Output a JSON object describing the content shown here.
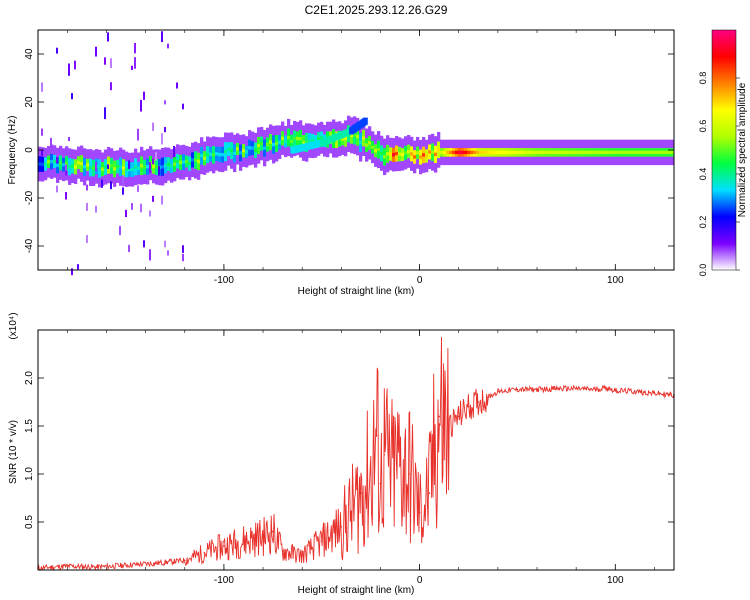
{
  "title": "C2E1.2025.293.12.26.G29",
  "colors": {
    "snr_line": "#e8302a",
    "axis": "#000000",
    "background": "#ffffff"
  },
  "chart_data": [
    {
      "type": "heatmap",
      "name": "spectrogram",
      "xlabel": "Height of straight line (km)",
      "ylabel": "Frequency (Hz)",
      "xlim": [
        -195,
        130
      ],
      "ylim": [
        -50,
        50
      ],
      "x_ticks": [
        -100,
        0,
        100
      ],
      "y_ticks": [
        -40,
        -20,
        0,
        20,
        40
      ],
      "x_tick_labels": [
        "-100",
        "0",
        "100"
      ],
      "y_tick_labels": [
        "-40",
        "-20",
        "0",
        "20",
        "40"
      ],
      "colorbar": {
        "label": "Normalized spectral amplitude",
        "range": [
          0,
          1
        ],
        "ticks": [
          0.0,
          0.2,
          0.4,
          0.6,
          0.8
        ],
        "tick_labels": [
          "0.0",
          "0.2",
          "0.4",
          "0.6",
          "0.8"
        ],
        "colormap": [
          "#ffffff",
          "#7b00ff",
          "#0000ff",
          "#00e0ff",
          "#00ff40",
          "#b0ff00",
          "#ffff00",
          "#ff8000",
          "#ff0000",
          "#ff0080"
        ]
      },
      "ridge_track": [
        {
          "x": -195,
          "freq": -6,
          "amp": 0.35
        },
        {
          "x": -175,
          "freq": -6,
          "amp": 0.45
        },
        {
          "x": -160,
          "freq": -7,
          "amp": 0.5
        },
        {
          "x": -145,
          "freq": -7,
          "amp": 0.45
        },
        {
          "x": -130,
          "freq": -6,
          "amp": 0.4
        },
        {
          "x": -115,
          "freq": -4,
          "amp": 0.4
        },
        {
          "x": -100,
          "freq": -1,
          "amp": 0.45
        },
        {
          "x": -85,
          "freq": 1,
          "amp": 0.4
        },
        {
          "x": -70,
          "freq": 4,
          "amp": 0.4
        },
        {
          "x": -60,
          "freq": 4,
          "amp": 0.45
        },
        {
          "x": -45,
          "freq": 5,
          "amp": 0.5
        },
        {
          "x": -35,
          "freq": 6,
          "amp": 0.5
        },
        {
          "x": -25,
          "freq": 2,
          "amp": 0.4
        },
        {
          "x": -20,
          "freq": -2,
          "amp": 0.55
        },
        {
          "x": -15,
          "freq": -2,
          "amp": 0.8
        },
        {
          "x": -10,
          "freq": -1,
          "amp": 0.65
        },
        {
          "x": -5,
          "freq": -2,
          "amp": 0.6
        },
        {
          "x": 0,
          "freq": -2,
          "amp": 0.7
        },
        {
          "x": 10,
          "freq": -1,
          "amp": 0.6
        },
        {
          "x": 20,
          "freq": -1,
          "amp": 0.95
        },
        {
          "x": 30,
          "freq": -1,
          "amp": 0.7
        },
        {
          "x": 60,
          "freq": -1,
          "amp": 0.6
        },
        {
          "x": 100,
          "freq": -1,
          "amp": 0.55
        },
        {
          "x": 130,
          "freq": -1,
          "amp": 0.55
        }
      ],
      "secondary_track": [
        {
          "x": -65,
          "freq": 0,
          "amp": 0.4
        },
        {
          "x": -50,
          "freq": 3,
          "amp": 0.45
        },
        {
          "x": -35,
          "freq": 8,
          "amp": 0.3
        },
        {
          "x": -28,
          "freq": 12,
          "amp": 0.3
        }
      ]
    },
    {
      "type": "line",
      "name": "snr",
      "xlabel": "Height of straight line (km)",
      "ylabel": "SNR (10 * v/v)",
      "y_scale_label": "(x10⁴)",
      "xlim": [
        -195,
        130
      ],
      "ylim": [
        0,
        2.5
      ],
      "x_ticks": [
        -100,
        0,
        100
      ],
      "y_ticks": [
        0.5,
        1.0,
        1.5,
        2.0
      ],
      "x_tick_labels": [
        "-100",
        "0",
        "100"
      ],
      "y_tick_labels": [
        "0.5",
        "1.0",
        "1.5",
        "2.0"
      ],
      "series": [
        {
          "name": "SNR",
          "x": [
            -195,
            -180,
            -165,
            -150,
            -135,
            -120,
            -110,
            -100,
            -90,
            -80,
            -75,
            -70,
            -60,
            -50,
            -40,
            -35,
            -30,
            -25,
            -22,
            -20,
            -18,
            -15,
            -10,
            -5,
            0,
            5,
            8,
            10,
            12,
            15,
            20,
            25,
            30,
            35,
            40,
            50,
            60,
            70,
            80,
            90,
            95,
            100,
            110,
            120,
            130
          ],
          "y": [
            0.02,
            0.04,
            0.03,
            0.05,
            0.07,
            0.1,
            0.18,
            0.25,
            0.3,
            0.35,
            0.4,
            0.2,
            0.15,
            0.3,
            0.45,
            0.6,
            0.8,
            1.0,
            1.4,
            0.9,
            1.2,
            1.0,
            1.1,
            1.0,
            0.6,
            0.8,
            1.3,
            1.6,
            1.5,
            1.5,
            1.6,
            1.7,
            1.75,
            1.8,
            1.86,
            1.88,
            1.88,
            1.89,
            1.89,
            1.88,
            1.9,
            1.87,
            1.86,
            1.84,
            1.82
          ]
        }
      ]
    }
  ]
}
